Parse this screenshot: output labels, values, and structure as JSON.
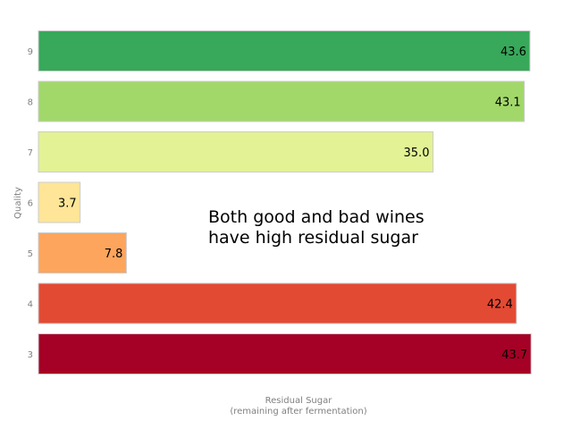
{
  "chart_data": {
    "type": "bar",
    "orientation": "horizontal",
    "categories": [
      "3",
      "4",
      "5",
      "6",
      "7",
      "8",
      "9"
    ],
    "values": [
      43.7,
      42.4,
      7.8,
      3.7,
      35.0,
      43.1,
      43.6
    ],
    "value_labels": [
      "43.7",
      "42.4",
      "7.8",
      "3.7",
      "35.0",
      "43.1",
      "43.6"
    ],
    "colors": [
      "#a50026",
      "#e34a33",
      "#fda55c",
      "#fee597",
      "#e2f295",
      "#a2d86a",
      "#38a85a"
    ],
    "ylabel": "Quality",
    "xlabel_lines": [
      "Residual Sugar",
      "(remaining after fermentation)"
    ],
    "xlim": [
      0,
      44
    ],
    "grid": false,
    "annotation_lines": [
      "Both good and bad wines",
      "have high residual sugar"
    ]
  }
}
